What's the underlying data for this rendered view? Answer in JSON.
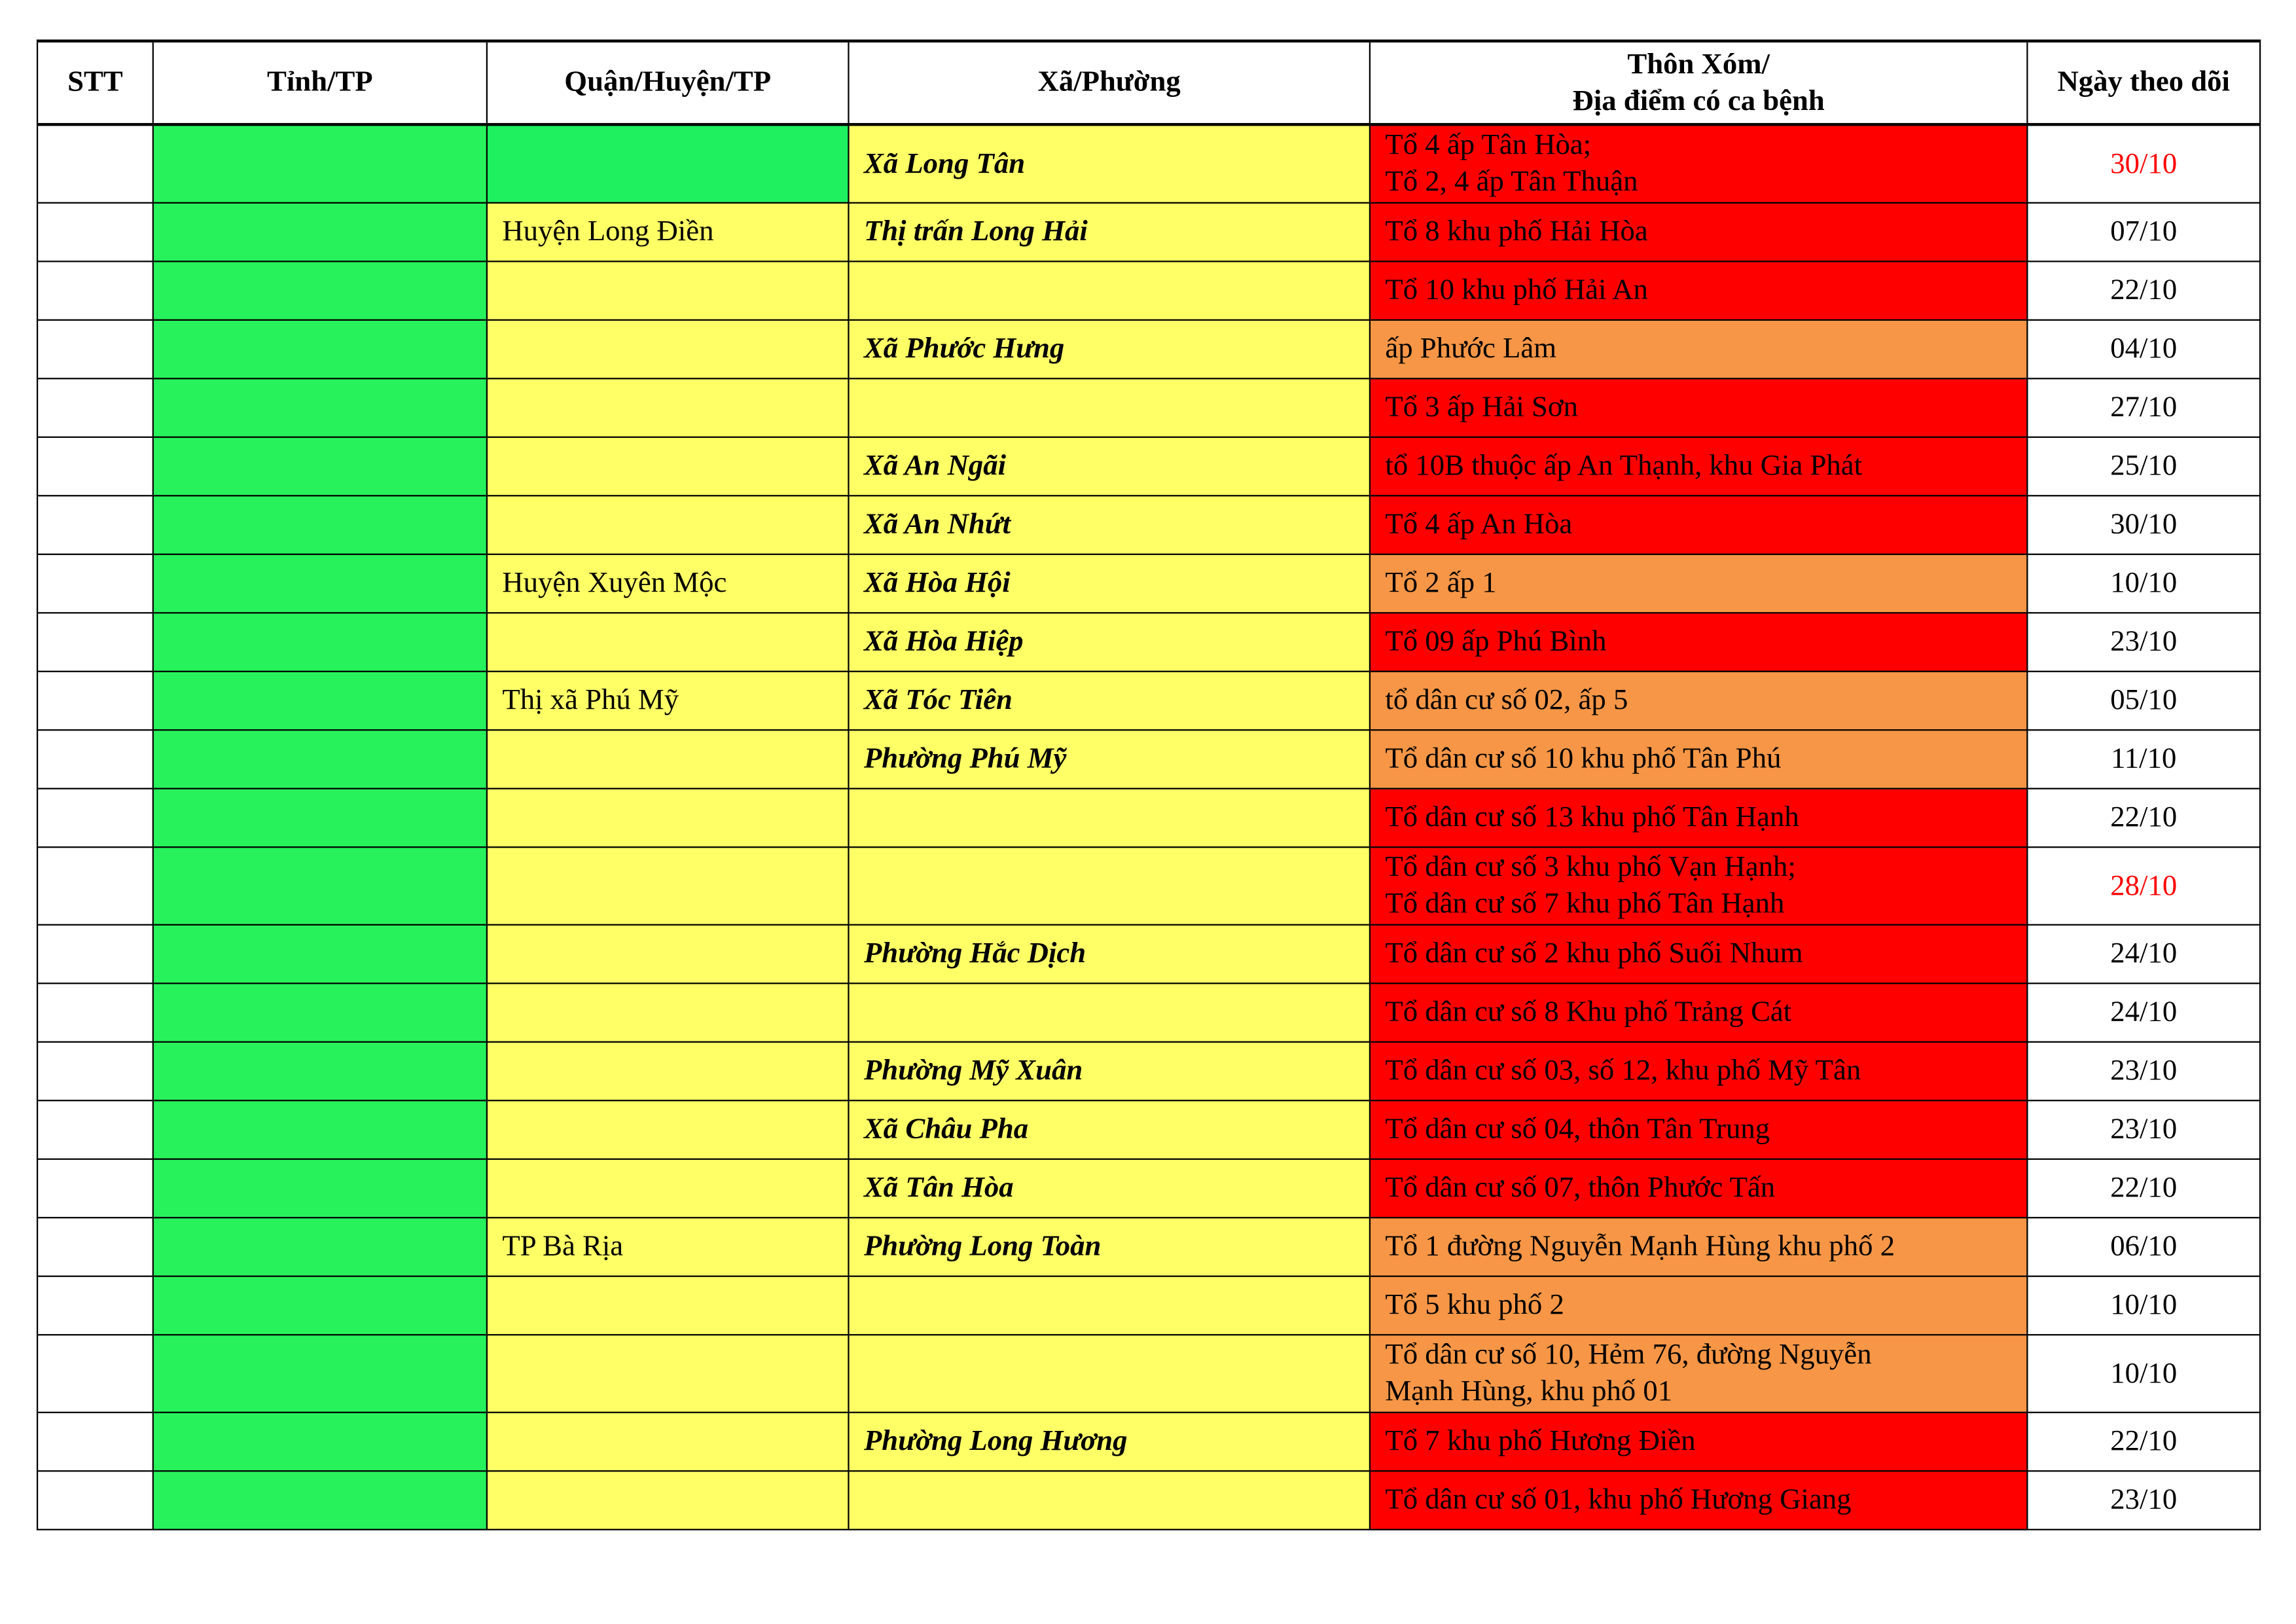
{
  "headers": {
    "stt": "STT",
    "tinh": "Tỉnh/TP",
    "quan": "Quận/Huyện/TP",
    "xa": "Xã/Phường",
    "thon": "Thôn Xóm/\nĐịa điểm có ca bệnh",
    "ngay": "Ngày theo dõi"
  },
  "colors": {
    "green": "#27f25b",
    "yellow": "#ffff66",
    "red": "#ff0000",
    "orange": "#f79646",
    "highlight_date": "#ff0000"
  },
  "rows": [
    {
      "quan": "",
      "quan_color": "green",
      "xa": "Xã Long Tân",
      "thon": "Tổ 4 ấp Tân Hòa;\nTổ 2, 4 ấp Tân Thuận",
      "thon_color": "red",
      "date": "30/10",
      "date_highlight": true
    },
    {
      "quan": "Huyện Long Điền",
      "xa": "Thị trấn Long Hải",
      "thon": "Tổ 8 khu phố Hải Hòa",
      "thon_color": "red",
      "date": "07/10"
    },
    {
      "quan": "",
      "xa": "",
      "thon": "Tổ 10 khu phố Hải An",
      "thon_color": "red",
      "date": "22/10"
    },
    {
      "quan": "",
      "xa": "Xã Phước Hưng",
      "thon": "ấp Phước Lâm",
      "thon_color": "orange",
      "date": "04/10"
    },
    {
      "quan": "",
      "xa": "",
      "thon": "Tổ 3 ấp Hải Sơn",
      "thon_color": "red",
      "date": "27/10"
    },
    {
      "quan": "",
      "xa": "Xã An Ngãi",
      "thon": "tổ 10B thuộc ấp An Thạnh, khu Gia Phát",
      "thon_color": "red",
      "date": "25/10"
    },
    {
      "quan": "",
      "xa": "Xã An Nhứt",
      "thon": "Tổ 4 ấp An Hòa",
      "thon_color": "red",
      "date": "30/10"
    },
    {
      "quan": "Huyện Xuyên Mộc",
      "xa": "Xã Hòa Hội",
      "thon": "Tổ 2 ấp 1",
      "thon_color": "orange",
      "date": "10/10"
    },
    {
      "quan": "",
      "xa": "Xã Hòa Hiệp",
      "thon": "Tổ 09 ấp Phú Bình",
      "thon_color": "red",
      "date": "23/10"
    },
    {
      "quan": "Thị xã Phú Mỹ",
      "xa": "Xã Tóc Tiên",
      "thon": "tổ dân cư số 02, ấp 5",
      "thon_color": "orange",
      "date": "05/10"
    },
    {
      "quan": "",
      "xa": "Phường Phú Mỹ",
      "thon": "Tổ dân cư số 10 khu phố Tân Phú",
      "thon_color": "orange",
      "date": "11/10"
    },
    {
      "quan": "",
      "xa": "",
      "thon": "Tổ dân cư số 13 khu phố Tân Hạnh",
      "thon_color": "red",
      "date": "22/10"
    },
    {
      "quan": "",
      "xa": "",
      "thon": "Tổ dân cư số 3 khu phố Vạn Hạnh;\nTổ dân cư số 7 khu phố Tân Hạnh",
      "thon_color": "red",
      "date": "28/10",
      "date_highlight": true
    },
    {
      "quan": "",
      "xa": "Phường Hắc Dịch",
      "thon": "Tổ dân cư số 2 khu phố Suối Nhum",
      "thon_color": "red",
      "date": "24/10"
    },
    {
      "quan": "",
      "xa": "",
      "thon": "Tổ dân cư số 8 Khu phố Trảng Cát",
      "thon_color": "red",
      "date": "24/10"
    },
    {
      "quan": "",
      "xa": "Phường Mỹ Xuân",
      "thon": "Tổ dân cư số 03, số 12, khu phố Mỹ Tân",
      "thon_color": "red",
      "date": "23/10"
    },
    {
      "quan": "",
      "xa": "Xã Châu Pha",
      "thon": "Tổ dân cư số 04, thôn Tân Trung",
      "thon_color": "red",
      "date": "23/10"
    },
    {
      "quan": "",
      "xa": "Xã Tân Hòa",
      "thon": "Tổ dân cư số 07, thôn Phước Tấn",
      "thon_color": "red",
      "date": "22/10"
    },
    {
      "quan": "TP Bà Rịa",
      "xa": "Phường Long Toàn",
      "thon": "Tổ 1 đường Nguyễn Mạnh Hùng khu phố 2",
      "thon_color": "orange",
      "date": "06/10"
    },
    {
      "quan": "",
      "xa": "",
      "thon": "Tổ 5 khu phố 2",
      "thon_color": "orange",
      "date": "10/10"
    },
    {
      "quan": "",
      "xa": "",
      "thon": "Tổ dân cư số 10, Hẻm 76, đường Nguyễn\nMạnh Hùng, khu phố 01",
      "thon_color": "orange",
      "date": "10/10"
    },
    {
      "quan": "",
      "xa": "Phường Long Hương",
      "thon": "Tổ 7 khu phố Hương Điền",
      "thon_color": "red",
      "date": "22/10"
    },
    {
      "quan": "",
      "xa": "",
      "thon": "Tổ dân cư số 01, khu phố Hương Giang",
      "thon_color": "red",
      "date": "23/10"
    }
  ]
}
